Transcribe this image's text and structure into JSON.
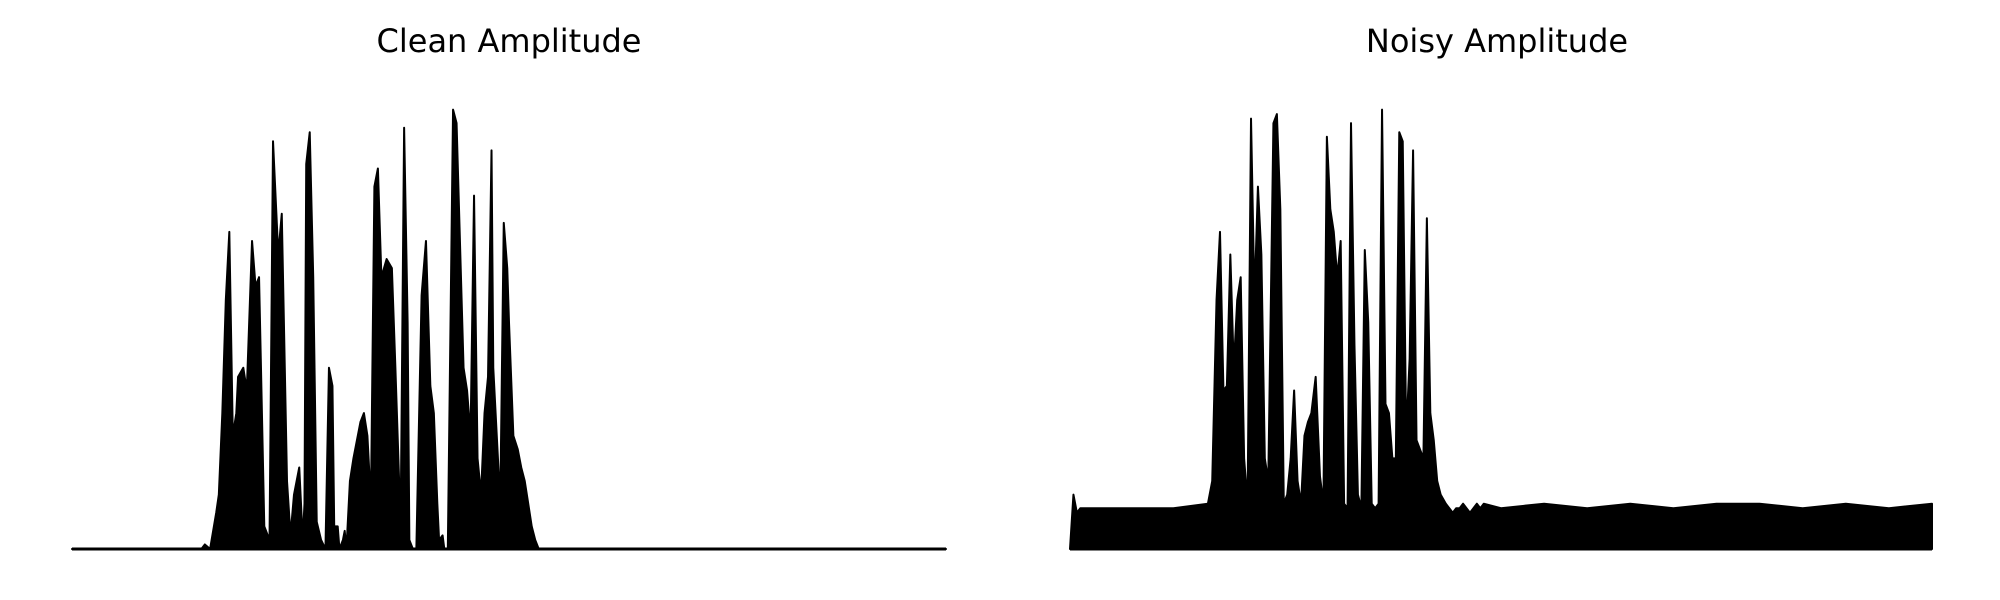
{
  "panels": {
    "clean": {
      "title": "Clean Amplitude"
    },
    "noisy": {
      "title": "Noisy Amplitude"
    }
  },
  "colors": {
    "waveform": "#000000",
    "background": "#ffffff"
  },
  "chart_data": [
    {
      "type": "area",
      "title": "Clean Amplitude",
      "xlabel": "",
      "ylabel": "",
      "xlim": [
        0,
        1
      ],
      "ylim": [
        0,
        1
      ],
      "axes_visible": false,
      "grid": false,
      "legend": "none",
      "noise_floor": 0.0,
      "series": [
        {
          "x": [
            0.0,
            0.148,
            0.152,
            0.158,
            0.165,
            0.168,
            0.172,
            0.176,
            0.18,
            0.184,
            0.188,
            0.19,
            0.196,
            0.2,
            0.206,
            0.21,
            0.214,
            0.216,
            0.22,
            0.226,
            0.23,
            0.236,
            0.24,
            0.246,
            0.25,
            0.254,
            0.26,
            0.264,
            0.266,
            0.268,
            0.272,
            0.276,
            0.28,
            0.285,
            0.29,
            0.294,
            0.298,
            0.3,
            0.304,
            0.306,
            0.31,
            0.312,
            0.314,
            0.318,
            0.322,
            0.33,
            0.334,
            0.338,
            0.342,
            0.346,
            0.35,
            0.354,
            0.36,
            0.366,
            0.37,
            0.376,
            0.38,
            0.384,
            0.386,
            0.39,
            0.394,
            0.4,
            0.405,
            0.41,
            0.414,
            0.418,
            0.42,
            0.424,
            0.426,
            0.43,
            0.436,
            0.44,
            0.448,
            0.452,
            0.456,
            0.46,
            0.464,
            0.468,
            0.472,
            0.476,
            0.48,
            0.482,
            0.486,
            0.49,
            0.494,
            0.498,
            0.5,
            0.505,
            0.51,
            0.514,
            0.518,
            0.522,
            0.526,
            0.53,
            0.534,
            0.538,
            0.542,
            0.546,
            0.55,
            0.555,
            0.56,
            0.564,
            0.568,
            0.572,
            0.576,
            0.58,
            0.584,
            0.588,
            0.592,
            0.596,
            0.6,
            0.605,
            0.61,
            0.615,
            0.62,
            0.625,
            0.63,
            0.635,
            0.64,
            0.645,
            0.65,
            0.655,
            0.66,
            0.665,
            0.67,
            0.675,
            0.68,
            0.685,
            0.69,
            0.7,
            1.0
          ],
          "values": [
            0.0,
            0.0,
            0.01,
            0.0,
            0.08,
            0.12,
            0.3,
            0.55,
            0.7,
            0.25,
            0.3,
            0.38,
            0.4,
            0.35,
            0.68,
            0.58,
            0.6,
            0.42,
            0.05,
            0.02,
            0.9,
            0.65,
            0.74,
            0.15,
            0.03,
            0.12,
            0.18,
            0.02,
            0.1,
            0.85,
            0.92,
            0.6,
            0.06,
            0.02,
            0.0,
            0.4,
            0.36,
            0.05,
            0.05,
            0.0,
            0.02,
            0.04,
            0.0,
            0.15,
            0.2,
            0.28,
            0.3,
            0.25,
            0.1,
            0.8,
            0.84,
            0.6,
            0.64,
            0.62,
            0.4,
            0.05,
            0.93,
            0.5,
            0.02,
            0.0,
            0.0,
            0.56,
            0.68,
            0.36,
            0.3,
            0.1,
            0.02,
            0.03,
            0.0,
            0.0,
            0.97,
            0.94,
            0.4,
            0.35,
            0.25,
            0.78,
            0.2,
            0.12,
            0.3,
            0.38,
            0.88,
            0.4,
            0.25,
            0.1,
            0.72,
            0.62,
            0.5,
            0.25,
            0.22,
            0.18,
            0.15,
            0.1,
            0.05,
            0.02,
            0.0,
            0.0,
            0.0,
            0.0,
            0.0,
            0.0,
            0.0,
            0.0,
            0.0,
            0.0,
            0.0,
            0.0,
            0.0,
            0.0,
            0.0,
            0.0,
            0.0,
            0.0,
            0.0,
            0.0,
            0.0,
            0.0,
            0.0,
            0.0,
            0.0,
            0.0,
            0.0,
            0.0,
            0.0,
            0.0,
            0.0,
            0.0,
            0.0,
            0.0,
            0.0,
            0.0,
            0.0
          ]
        }
      ]
    },
    {
      "type": "area",
      "title": "Noisy Amplitude",
      "xlabel": "",
      "ylabel": "",
      "xlim": [
        0,
        1
      ],
      "ylim": [
        0,
        1
      ],
      "axes_visible": false,
      "grid": false,
      "legend": "none",
      "noise_floor": 0.08,
      "series": [
        {
          "x": [
            0.0,
            0.004,
            0.008,
            0.012,
            0.08,
            0.12,
            0.16,
            0.165,
            0.17,
            0.174,
            0.178,
            0.182,
            0.186,
            0.19,
            0.194,
            0.198,
            0.202,
            0.206,
            0.21,
            0.214,
            0.218,
            0.222,
            0.226,
            0.23,
            0.236,
            0.24,
            0.244,
            0.248,
            0.252,
            0.256,
            0.26,
            0.264,
            0.268,
            0.272,
            0.276,
            0.28,
            0.285,
            0.29,
            0.294,
            0.298,
            0.302,
            0.306,
            0.31,
            0.314,
            0.318,
            0.322,
            0.326,
            0.33,
            0.334,
            0.338,
            0.342,
            0.346,
            0.35,
            0.354,
            0.358,
            0.362,
            0.366,
            0.37,
            0.374,
            0.378,
            0.382,
            0.386,
            0.39,
            0.394,
            0.398,
            0.402,
            0.406,
            0.41,
            0.414,
            0.418,
            0.422,
            0.426,
            0.43,
            0.436,
            0.44,
            0.444,
            0.448,
            0.452,
            0.456,
            0.46,
            0.464,
            0.468,
            0.472,
            0.476,
            0.48,
            0.5,
            0.55,
            0.6,
            0.65,
            0.7,
            0.75,
            0.8,
            0.85,
            0.9,
            0.95,
            1.0
          ],
          "values": [
            0.0,
            0.12,
            0.08,
            0.09,
            0.09,
            0.09,
            0.1,
            0.15,
            0.55,
            0.7,
            0.35,
            0.36,
            0.65,
            0.4,
            0.55,
            0.6,
            0.2,
            0.1,
            0.95,
            0.55,
            0.8,
            0.65,
            0.2,
            0.15,
            0.94,
            0.96,
            0.75,
            0.1,
            0.12,
            0.2,
            0.35,
            0.15,
            0.1,
            0.25,
            0.28,
            0.3,
            0.38,
            0.16,
            0.1,
            0.91,
            0.75,
            0.7,
            0.6,
            0.68,
            0.1,
            0.09,
            0.94,
            0.45,
            0.12,
            0.09,
            0.66,
            0.5,
            0.1,
            0.09,
            0.1,
            0.97,
            0.32,
            0.3,
            0.2,
            0.2,
            0.92,
            0.9,
            0.25,
            0.42,
            0.88,
            0.24,
            0.22,
            0.2,
            0.73,
            0.3,
            0.24,
            0.15,
            0.12,
            0.1,
            0.09,
            0.08,
            0.09,
            0.09,
            0.1,
            0.09,
            0.08,
            0.09,
            0.1,
            0.09,
            0.1,
            0.09,
            0.1,
            0.09,
            0.1,
            0.09,
            0.1,
            0.1,
            0.09,
            0.1,
            0.09,
            0.1
          ]
        }
      ]
    }
  ]
}
